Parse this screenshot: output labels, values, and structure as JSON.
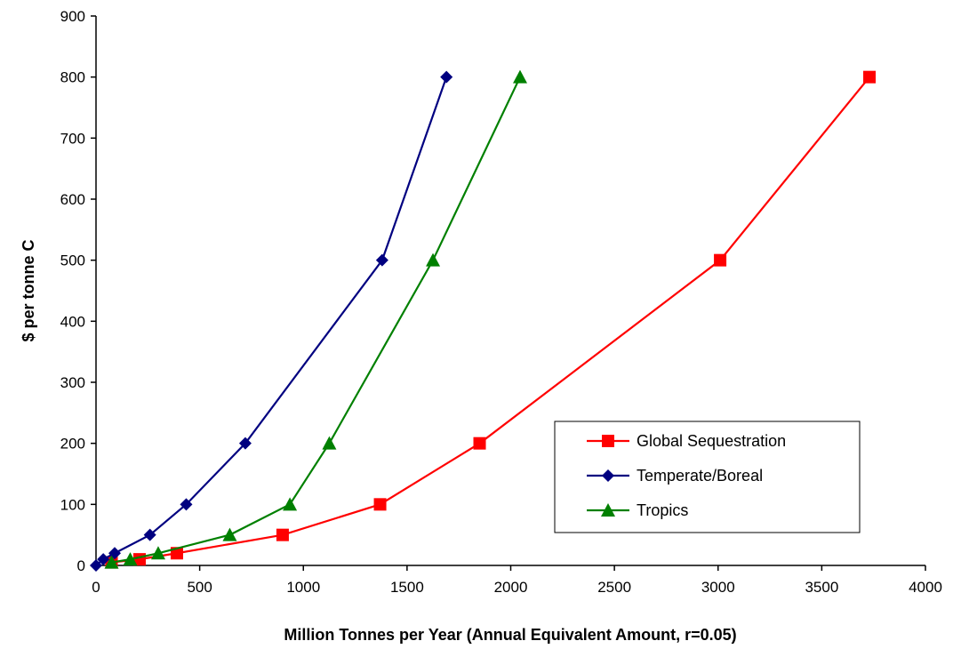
{
  "chart_data": {
    "type": "line",
    "title": "",
    "xlabel": "Million Tonnes per Year (Annual Equivalent Amount, r=0.05)",
    "ylabel": "$ per tonne C",
    "xlim": [
      0,
      4000
    ],
    "ylim": [
      0,
      900
    ],
    "xticks": [
      0,
      500,
      1000,
      1500,
      2000,
      2500,
      3000,
      3500,
      4000
    ],
    "yticks": [
      0,
      100,
      200,
      300,
      400,
      500,
      600,
      700,
      800,
      900
    ],
    "grid": false,
    "legend_position": "lower-right",
    "series": [
      {
        "name": "Global Sequestration",
        "color": "#ff0000",
        "marker": "square",
        "points": [
          [
            75,
            5
          ],
          [
            210,
            10
          ],
          [
            390,
            20
          ],
          [
            900,
            50
          ],
          [
            1370,
            100
          ],
          [
            1850,
            200
          ],
          [
            3010,
            500
          ],
          [
            3730,
            800
          ]
        ]
      },
      {
        "name": "Temperate/Boreal",
        "color": "#000080",
        "marker": "diamond",
        "points": [
          [
            0,
            0
          ],
          [
            35,
            10
          ],
          [
            90,
            20
          ],
          [
            260,
            50
          ],
          [
            435,
            100
          ],
          [
            720,
            200
          ],
          [
            1380,
            500
          ],
          [
            1690,
            800
          ]
        ]
      },
      {
        "name": "Tropics",
        "color": "#008000",
        "marker": "triangle",
        "points": [
          [
            75,
            5
          ],
          [
            165,
            10
          ],
          [
            300,
            20
          ],
          [
            645,
            50
          ],
          [
            935,
            100
          ],
          [
            1125,
            200
          ],
          [
            1625,
            500
          ],
          [
            2045,
            800
          ]
        ]
      }
    ]
  }
}
